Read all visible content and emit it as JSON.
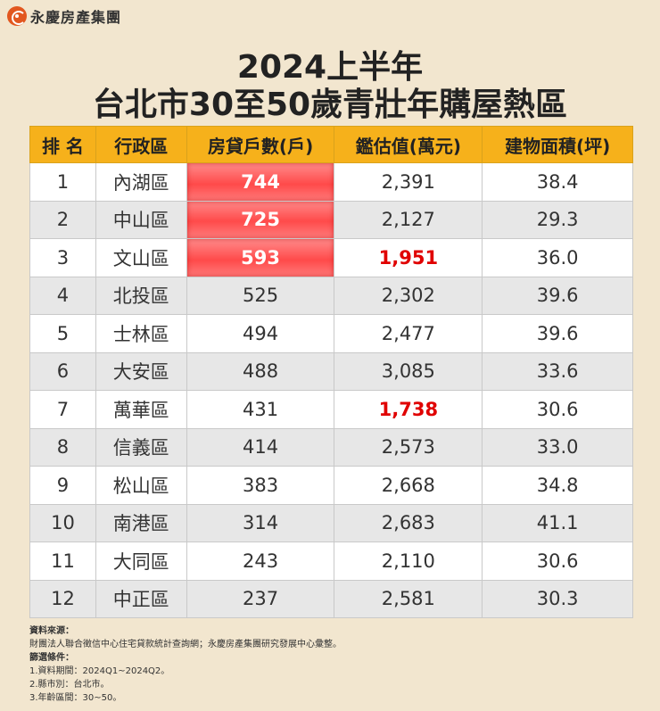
{
  "brand": {
    "name": "永慶房產集團",
    "logo_icon": "yungching-logo-icon",
    "logo_color": "#e2571f"
  },
  "title": {
    "line1": "2024上半年",
    "line2": "台北市30至50歲青壯年購屋熱區"
  },
  "table": {
    "header_color": "#f6b11b",
    "highlight_color": "#ff4a4a",
    "columns": [
      "排 名",
      "行政區",
      "房貸戶數(戶)",
      "鑑估值(萬元)",
      "建物面積(坪)"
    ],
    "rows": [
      {
        "rank": "1",
        "district": "內湖區",
        "mortgages": "744",
        "appraisal": "2,391",
        "area": "38.4",
        "mortgages_highlight": true,
        "appraisal_red": false
      },
      {
        "rank": "2",
        "district": "中山區",
        "mortgages": "725",
        "appraisal": "2,127",
        "area": "29.3",
        "mortgages_highlight": true,
        "appraisal_red": false
      },
      {
        "rank": "3",
        "district": "文山區",
        "mortgages": "593",
        "appraisal": "1,951",
        "area": "36.0",
        "mortgages_highlight": true,
        "appraisal_red": true
      },
      {
        "rank": "4",
        "district": "北投區",
        "mortgages": "525",
        "appraisal": "2,302",
        "area": "39.6",
        "mortgages_highlight": false,
        "appraisal_red": false
      },
      {
        "rank": "5",
        "district": "士林區",
        "mortgages": "494",
        "appraisal": "2,477",
        "area": "39.6",
        "mortgages_highlight": false,
        "appraisal_red": false
      },
      {
        "rank": "6",
        "district": "大安區",
        "mortgages": "488",
        "appraisal": "3,085",
        "area": "33.6",
        "mortgages_highlight": false,
        "appraisal_red": false
      },
      {
        "rank": "7",
        "district": "萬華區",
        "mortgages": "431",
        "appraisal": "1,738",
        "area": "30.6",
        "mortgages_highlight": false,
        "appraisal_red": true
      },
      {
        "rank": "8",
        "district": "信義區",
        "mortgages": "414",
        "appraisal": "2,573",
        "area": "33.0",
        "mortgages_highlight": false,
        "appraisal_red": false
      },
      {
        "rank": "9",
        "district": "松山區",
        "mortgages": "383",
        "appraisal": "2,668",
        "area": "34.8",
        "mortgages_highlight": false,
        "appraisal_red": false
      },
      {
        "rank": "10",
        "district": "南港區",
        "mortgages": "314",
        "appraisal": "2,683",
        "area": "41.1",
        "mortgages_highlight": false,
        "appraisal_red": false
      },
      {
        "rank": "11",
        "district": "大同區",
        "mortgages": "243",
        "appraisal": "2,110",
        "area": "30.6",
        "mortgages_highlight": false,
        "appraisal_red": false
      },
      {
        "rank": "12",
        "district": "中正區",
        "mortgages": "237",
        "appraisal": "2,581",
        "area": "30.3",
        "mortgages_highlight": false,
        "appraisal_red": false
      }
    ]
  },
  "notes": {
    "source_header": "資料來源：",
    "source_text": "財團法人聯合徵信中心住宅貸款統計查詢網；永慶房產集團研究發展中心彙整。",
    "criteria_header": "篩選條件：",
    "criteria": [
      "1.資料期間：2024Q1~2024Q2。",
      "2.縣市別：台北市。",
      "3.年齡區間：30~50。"
    ]
  }
}
